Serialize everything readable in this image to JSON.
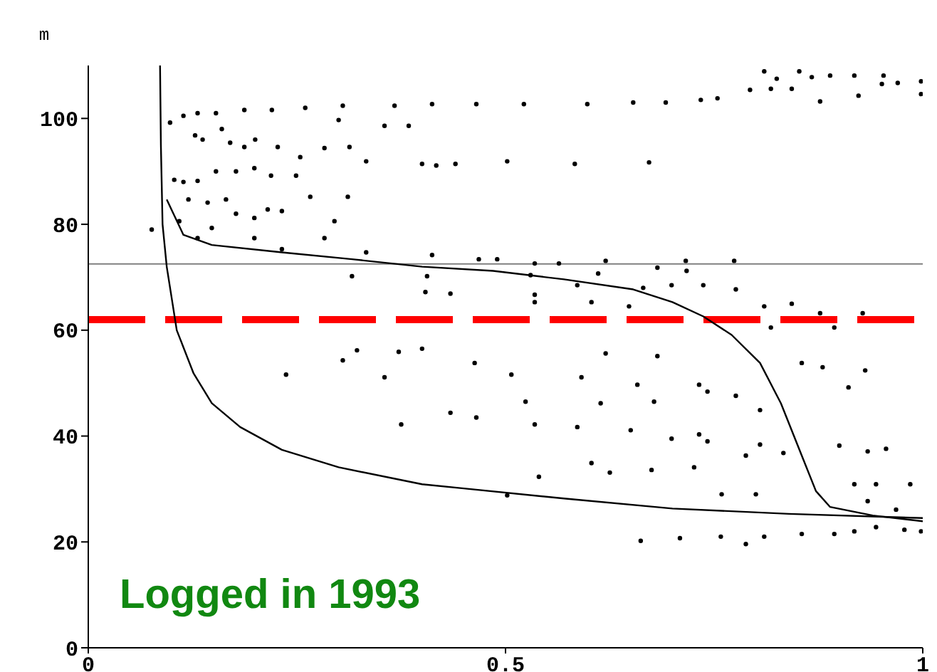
{
  "chart_data": {
    "type": "scatter",
    "ylabel": "m",
    "xlim": [
      0,
      1
    ],
    "xticks": [
      0,
      0.5,
      1
    ],
    "ylim": [
      0,
      110
    ],
    "yticks": [
      0,
      20,
      40,
      60,
      80,
      100
    ],
    "annotations": [
      "Logged in 1993"
    ],
    "ref_lines": [
      {
        "axis": "y",
        "value": 72.5,
        "color": "#808080",
        "line_style": "solid"
      },
      {
        "axis": "y",
        "value": 62,
        "color": "#ff0000",
        "line_style": "dashed"
      }
    ],
    "series": [
      {
        "color": "#000000",
        "marker": "circle",
        "x": [
          0.098,
          0.114,
          0.131,
          0.153,
          0.187,
          0.22,
          0.26,
          0.305,
          0.367,
          0.412,
          0.128,
          0.137,
          0.16,
          0.17,
          0.187,
          0.2,
          0.227,
          0.254,
          0.283,
          0.3,
          0.313,
          0.333,
          0.355,
          0.384,
          0.4,
          0.417,
          0.44,
          0.103,
          0.114,
          0.131,
          0.153,
          0.177,
          0.199,
          0.219,
          0.249,
          0.12,
          0.143,
          0.165,
          0.177,
          0.199,
          0.215,
          0.232,
          0.266,
          0.295,
          0.311,
          0.109,
          0.131,
          0.148,
          0.199,
          0.232,
          0.283,
          0.333,
          0.076,
          0.412,
          0.316,
          0.406,
          0.404,
          0.434,
          0.81,
          0.825,
          0.852,
          0.867,
          0.889,
          0.918,
          0.953,
          0.97,
          0.998,
          0.793,
          0.818,
          0.843,
          0.877,
          0.923,
          0.951,
          0.998,
          0.734,
          0.754,
          0.692,
          0.653,
          0.598,
          0.522,
          0.465,
          0.502,
          0.583,
          0.672,
          0.468,
          0.49,
          0.535,
          0.564,
          0.62,
          0.716,
          0.774,
          0.53,
          0.611,
          0.682,
          0.717,
          0.535,
          0.586,
          0.665,
          0.699,
          0.737,
          0.776,
          0.535,
          0.603,
          0.648,
          0.81,
          0.843,
          0.877,
          0.928,
          0.818,
          0.894,
          0.322,
          0.372,
          0.305,
          0.355,
          0.237,
          0.434,
          0.375,
          0.4,
          0.463,
          0.507,
          0.591,
          0.62,
          0.682,
          0.658,
          0.732,
          0.524,
          0.614,
          0.678,
          0.742,
          0.776,
          0.805,
          0.465,
          0.535,
          0.586,
          0.65,
          0.699,
          0.732,
          0.742,
          0.805,
          0.788,
          0.833,
          0.9,
          0.934,
          0.956,
          0.603,
          0.54,
          0.625,
          0.675,
          0.726,
          0.759,
          0.8,
          0.855,
          0.88,
          0.931,
          0.911,
          0.918,
          0.944,
          0.985,
          0.934,
          0.968,
          0.662,
          0.709,
          0.758,
          0.788,
          0.81,
          0.855,
          0.894,
          0.918,
          0.944,
          0.978,
          0.998,
          0.502
        ],
        "values": [
          99.2,
          100.5,
          101,
          101,
          101.6,
          101.6,
          102,
          102.4,
          102.4,
          102.7,
          96.8,
          96,
          98,
          95.4,
          94.6,
          96,
          94.6,
          92.7,
          94.4,
          99.7,
          94.6,
          91.9,
          98.6,
          98.6,
          91.4,
          91.1,
          91.4,
          88.4,
          88,
          88.2,
          90,
          90,
          90.6,
          89.2,
          89.2,
          84.7,
          84.1,
          84.7,
          82,
          81.2,
          82.8,
          82.5,
          85.2,
          80.6,
          85.2,
          80.6,
          77.4,
          79.3,
          77.4,
          75.3,
          77.4,
          74.7,
          79,
          74.2,
          70.2,
          70.2,
          67.2,
          66.9,
          108.9,
          107.5,
          108.9,
          107.8,
          108.1,
          108.1,
          108.1,
          106.7,
          107,
          105.4,
          105.6,
          105.6,
          103.2,
          104.3,
          106.5,
          104.6,
          103.5,
          103.8,
          103,
          103,
          102.7,
          102.7,
          102.7,
          91.9,
          91.4,
          91.7,
          73.4,
          73.4,
          72.6,
          72.6,
          73.1,
          73.1,
          73.1,
          70.4,
          70.7,
          71.8,
          71.2,
          66.7,
          68.5,
          68,
          68.5,
          68.5,
          67.7,
          65.3,
          65.3,
          64.5,
          64.5,
          65,
          63.2,
          63.2,
          60.5,
          60.5,
          56.2,
          55.9,
          54.3,
          51.1,
          51.6,
          44.4,
          42.2,
          56.5,
          53.8,
          51.6,
          51.1,
          55.6,
          55.1,
          49.7,
          49.7,
          46.5,
          46.2,
          46.5,
          48.4,
          47.6,
          44.9,
          43.5,
          42.2,
          41.7,
          41.1,
          39.5,
          40.3,
          39,
          38.4,
          36.3,
          36.8,
          38.2,
          37.1,
          37.6,
          34.9,
          32.3,
          33.1,
          33.6,
          34.1,
          29,
          29,
          53.8,
          53,
          52.4,
          49.2,
          30.9,
          30.9,
          30.9,
          27.7,
          26.1,
          20.2,
          20.7,
          21,
          19.6,
          21,
          21.5,
          21.5,
          22,
          22.8,
          22.3,
          22,
          28.8
        ]
      },
      {
        "type": "line",
        "color": "#000000",
        "marker": "none",
        "x": [
          0.086,
          0.087,
          0.089,
          0.094,
          0.101,
          0.106,
          0.126,
          0.148,
          0.182,
          0.232,
          0.3,
          0.4,
          0.45,
          0.57,
          0.7,
          0.84,
          1
        ],
        "values": [
          110,
          95,
          80,
          72,
          65,
          60,
          51.9,
          46.2,
          41.7,
          37.4,
          34.1,
          30.9,
          30.1,
          28.2,
          26.3,
          25.3,
          24.5
        ]
      },
      {
        "type": "line",
        "color": "#000000",
        "marker": "none",
        "x": [
          0.094,
          0.114,
          0.148,
          0.232,
          0.316,
          0.4,
          0.485,
          0.57,
          0.653,
          0.7,
          0.737,
          0.771,
          0.805,
          0.83,
          0.855,
          0.872,
          0.889,
          0.94,
          1
        ],
        "values": [
          84.7,
          78,
          76.1,
          74.7,
          73.4,
          72,
          71.2,
          69.6,
          67.7,
          65.3,
          62.6,
          59.1,
          53.8,
          46.2,
          36.3,
          29.6,
          26.6,
          25,
          23.9
        ]
      }
    ]
  }
}
